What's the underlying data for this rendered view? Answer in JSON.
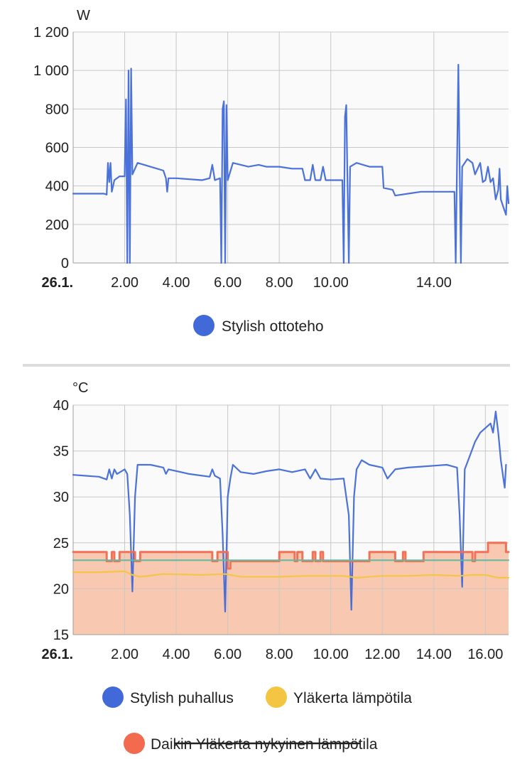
{
  "chart_data": [
    {
      "type": "line",
      "y_unit": "W",
      "ylim": [
        0,
        1200
      ],
      "y_ticks": [
        "1 200",
        "1 000",
        "800",
        "600",
        "400",
        "200",
        "0"
      ],
      "x_ticks": [
        "26.1.",
        "2.00",
        "4.00",
        "6.00",
        "8.00",
        "10.00",
        "14.00"
      ],
      "x_tick_hours": [
        0,
        2,
        4,
        6,
        8,
        10,
        14
      ],
      "xlim_hours": [
        0,
        16.9
      ],
      "grid": true,
      "legend_position": "bottom",
      "series": [
        {
          "name": "Stylish ottoteho",
          "color": "#4169d8",
          "points": [
            [
              0,
              360
            ],
            [
              1.2,
              360
            ],
            [
              1.3,
              355
            ],
            [
              1.35,
              520
            ],
            [
              1.4,
              420
            ],
            [
              1.45,
              520
            ],
            [
              1.5,
              370
            ],
            [
              1.6,
              430
            ],
            [
              1.8,
              450
            ],
            [
              2.0,
              450
            ],
            [
              2.05,
              850
            ],
            [
              2.1,
              0
            ],
            [
              2.15,
              1000
            ],
            [
              2.2,
              0
            ],
            [
              2.25,
              1010
            ],
            [
              2.3,
              460
            ],
            [
              2.5,
              520
            ],
            [
              3.0,
              500
            ],
            [
              3.5,
              480
            ],
            [
              3.6,
              440
            ],
            [
              3.65,
              370
            ],
            [
              3.7,
              440
            ],
            [
              4.0,
              440
            ],
            [
              5.0,
              430
            ],
            [
              5.3,
              440
            ],
            [
              5.4,
              510
            ],
            [
              5.5,
              430
            ],
            [
              5.7,
              440
            ],
            [
              5.75,
              0
            ],
            [
              5.8,
              800
            ],
            [
              5.85,
              840
            ],
            [
              5.9,
              0
            ],
            [
              5.95,
              820
            ],
            [
              6.0,
              430
            ],
            [
              6.2,
              520
            ],
            [
              6.8,
              500
            ],
            [
              7.2,
              510
            ],
            [
              7.5,
              500
            ],
            [
              8.0,
              500
            ],
            [
              8.5,
              490
            ],
            [
              8.9,
              490
            ],
            [
              9.0,
              430
            ],
            [
              9.2,
              430
            ],
            [
              9.3,
              510
            ],
            [
              9.4,
              430
            ],
            [
              9.6,
              430
            ],
            [
              9.7,
              500
            ],
            [
              9.8,
              430
            ],
            [
              10.2,
              430
            ],
            [
              10.45,
              430
            ],
            [
              10.5,
              0
            ],
            [
              10.55,
              760
            ],
            [
              10.6,
              820
            ],
            [
              10.7,
              0
            ],
            [
              10.75,
              500
            ],
            [
              11.0,
              520
            ],
            [
              11.5,
              500
            ],
            [
              12.0,
              500
            ],
            [
              12.05,
              390
            ],
            [
              12.4,
              380
            ],
            [
              12.5,
              350
            ],
            [
              13.0,
              360
            ],
            [
              13.5,
              370
            ],
            [
              14.0,
              370
            ],
            [
              14.5,
              370
            ],
            [
              14.8,
              370
            ],
            [
              14.85,
              0
            ],
            [
              14.95,
              1030
            ],
            [
              15.05,
              0
            ],
            [
              15.1,
              500
            ],
            [
              15.3,
              540
            ],
            [
              15.5,
              520
            ],
            [
              15.6,
              460
            ],
            [
              15.8,
              520
            ],
            [
              15.9,
              420
            ],
            [
              16.0,
              430
            ],
            [
              16.1,
              500
            ],
            [
              16.2,
              420
            ],
            [
              16.3,
              440
            ],
            [
              16.4,
              330
            ],
            [
              16.5,
              380
            ],
            [
              16.55,
              490
            ],
            [
              16.6,
              330
            ],
            [
              16.7,
              290
            ],
            [
              16.8,
              250
            ],
            [
              16.85,
              400
            ],
            [
              16.9,
              310
            ]
          ]
        }
      ]
    },
    {
      "type": "line",
      "y_unit": "°C",
      "ylim": [
        15,
        40
      ],
      "y_ticks": [
        "40",
        "35",
        "30",
        "25",
        "20",
        "15"
      ],
      "x_ticks": [
        "26.1.",
        "2.00",
        "4.00",
        "6.00",
        "8.00",
        "10.00",
        "12.00",
        "14.00",
        "16.00"
      ],
      "x_tick_hours": [
        0,
        2,
        4,
        6,
        8,
        10,
        12,
        14,
        16
      ],
      "xlim_hours": [
        0,
        16.9
      ],
      "grid": true,
      "legend_position": "bottom",
      "series": [
        {
          "name": "Stylish puhallus",
          "color": "#4169d8",
          "points": [
            [
              0,
              32.4
            ],
            [
              1.0,
              32.2
            ],
            [
              1.3,
              31.9
            ],
            [
              1.4,
              33
            ],
            [
              1.5,
              32
            ],
            [
              1.6,
              33
            ],
            [
              1.7,
              32.5
            ],
            [
              2.0,
              33
            ],
            [
              2.1,
              32.5
            ],
            [
              2.2,
              28
            ],
            [
              2.3,
              19.7
            ],
            [
              2.4,
              30
            ],
            [
              2.5,
              33.5
            ],
            [
              3.0,
              33.5
            ],
            [
              3.5,
              33.2
            ],
            [
              3.6,
              32.5
            ],
            [
              3.7,
              33
            ],
            [
              4.5,
              32.5
            ],
            [
              5.3,
              32.2
            ],
            [
              5.4,
              33
            ],
            [
              5.5,
              32.3
            ],
            [
              5.7,
              32
            ],
            [
              5.8,
              26
            ],
            [
              5.9,
              17.5
            ],
            [
              6.0,
              30
            ],
            [
              6.1,
              32
            ],
            [
              6.2,
              33.5
            ],
            [
              6.5,
              32.7
            ],
            [
              7.0,
              32.5
            ],
            [
              7.5,
              32.8
            ],
            [
              8.0,
              33
            ],
            [
              8.5,
              32.7
            ],
            [
              9.0,
              33
            ],
            [
              9.2,
              32
            ],
            [
              9.4,
              33
            ],
            [
              9.6,
              32
            ],
            [
              10.0,
              31.9
            ],
            [
              10.5,
              32
            ],
            [
              10.7,
              28
            ],
            [
              10.8,
              17.7
            ],
            [
              10.9,
              30
            ],
            [
              11.0,
              33
            ],
            [
              11.2,
              34
            ],
            [
              11.5,
              33.5
            ],
            [
              12.0,
              33.2
            ],
            [
              12.2,
              32
            ],
            [
              12.5,
              33
            ],
            [
              13.0,
              33.2
            ],
            [
              13.5,
              33.3
            ],
            [
              14.0,
              33.4
            ],
            [
              14.5,
              33.5
            ],
            [
              14.9,
              33.2
            ],
            [
              15.0,
              28
            ],
            [
              15.1,
              20.2
            ],
            [
              15.2,
              33
            ],
            [
              15.4,
              34.5
            ],
            [
              15.6,
              36
            ],
            [
              15.8,
              37
            ],
            [
              16.0,
              37.5
            ],
            [
              16.2,
              38
            ],
            [
              16.3,
              37
            ],
            [
              16.4,
              39.3
            ],
            [
              16.5,
              37
            ],
            [
              16.6,
              34
            ],
            [
              16.7,
              32
            ],
            [
              16.75,
              31
            ],
            [
              16.8,
              33.5
            ]
          ]
        },
        {
          "name": "Yläkerta lämpötila",
          "color": "#f4c542",
          "points": [
            [
              0,
              21.8
            ],
            [
              1.0,
              21.8
            ],
            [
              2.0,
              21.9
            ],
            [
              2.3,
              21.5
            ],
            [
              2.6,
              21.3
            ],
            [
              3.5,
              21.6
            ],
            [
              5.0,
              21.5
            ],
            [
              5.9,
              21.6
            ],
            [
              6.5,
              21.3
            ],
            [
              8.0,
              21.3
            ],
            [
              9.0,
              21.4
            ],
            [
              10.5,
              21.4
            ],
            [
              11.0,
              21.2
            ],
            [
              12.0,
              21.4
            ],
            [
              13.0,
              21.4
            ],
            [
              14.0,
              21.5
            ],
            [
              15.0,
              21.4
            ],
            [
              15.5,
              21.5
            ],
            [
              16.0,
              21.5
            ],
            [
              16.5,
              21.2
            ],
            [
              16.9,
              21.2
            ]
          ]
        },
        {
          "name": "Daikin Yläkerta nykyinen lämpötila",
          "color": "#f26b4f",
          "fill": "#f8c9b0",
          "points": [
            [
              0,
              24
            ],
            [
              1.3,
              24
            ],
            [
              1.3,
              23
            ],
            [
              1.5,
              23
            ],
            [
              1.5,
              24
            ],
            [
              1.6,
              24
            ],
            [
              1.6,
              23
            ],
            [
              1.8,
              23
            ],
            [
              1.8,
              24
            ],
            [
              2.4,
              24
            ],
            [
              2.4,
              23
            ],
            [
              2.6,
              23
            ],
            [
              2.6,
              24
            ],
            [
              5.4,
              24
            ],
            [
              5.4,
              23
            ],
            [
              5.6,
              23
            ],
            [
              5.6,
              24
            ],
            [
              6.0,
              24
            ],
            [
              6.0,
              22.2
            ],
            [
              6.1,
              22.2
            ],
            [
              6.1,
              23
            ],
            [
              8.0,
              23
            ],
            [
              8.0,
              24
            ],
            [
              8.6,
              24
            ],
            [
              8.6,
              23
            ],
            [
              8.7,
              23
            ],
            [
              8.7,
              24
            ],
            [
              8.9,
              24
            ],
            [
              8.9,
              23
            ],
            [
              9.3,
              23
            ],
            [
              9.3,
              24
            ],
            [
              9.4,
              24
            ],
            [
              9.4,
              23
            ],
            [
              9.6,
              23
            ],
            [
              9.6,
              24
            ],
            [
              9.7,
              24
            ],
            [
              9.7,
              23
            ],
            [
              11.5,
              23
            ],
            [
              11.5,
              24
            ],
            [
              12.5,
              24
            ],
            [
              12.5,
              23
            ],
            [
              12.8,
              23
            ],
            [
              12.8,
              24
            ],
            [
              12.9,
              24
            ],
            [
              12.9,
              23
            ],
            [
              13.6,
              23
            ],
            [
              13.6,
              24
            ],
            [
              15.5,
              24
            ],
            [
              15.5,
              23
            ],
            [
              15.6,
              23
            ],
            [
              15.6,
              24
            ],
            [
              16.1,
              24
            ],
            [
              16.1,
              25
            ],
            [
              16.8,
              25
            ],
            [
              16.8,
              24
            ],
            [
              16.9,
              24
            ]
          ]
        },
        {
          "name": "",
          "color": "#5fb8a0",
          "points": [
            [
              0,
              23.1
            ],
            [
              16.9,
              23.1
            ]
          ]
        }
      ]
    }
  ],
  "chart1": {
    "unit": "W",
    "x_labels": [
      "26.1.",
      "2.00",
      "4.00",
      "6.00",
      "8.00",
      "10.00",
      "14.00"
    ],
    "legend": [
      {
        "label": "Stylish ottoteho",
        "color": "#4169d8"
      }
    ]
  },
  "chart2": {
    "unit": "°C",
    "x_labels": [
      "26.1.",
      "2.00",
      "4.00",
      "6.00",
      "8.00",
      "10.00",
      "12.00",
      "14.00",
      "16.00"
    ],
    "legend": [
      {
        "label": "Stylish puhallus",
        "color": "#4169d8"
      },
      {
        "label": "Yläkerta lämpötila",
        "color": "#f4c542"
      },
      {
        "label": "Daikin Yläkerta nykyinen lämpötila",
        "color": "#f26b4f"
      }
    ]
  }
}
